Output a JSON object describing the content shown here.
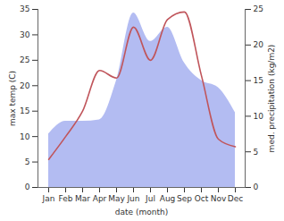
{
  "chart_data": {
    "type": "line",
    "x_label": "date (month)",
    "y_label": "max temp (C)",
    "y2_label": "med. precipitation (kg/m2)",
    "categories": [
      "Jan",
      "Feb",
      "Mar",
      "Apr",
      "May",
      "Jun",
      "Jul",
      "Aug",
      "Sep",
      "Oct",
      "Nov",
      "Dec"
    ],
    "series": [
      {
        "name": "med. precipitation",
        "type": "area",
        "axis": "y2",
        "color": "#b3bcf2",
        "values": [
          7.5,
          9.3,
          9.3,
          9.5,
          15,
          24.5,
          20.5,
          22.5,
          17.5,
          15,
          14,
          10.5
        ]
      },
      {
        "name": "max temp",
        "type": "line",
        "color": "#c0555b",
        "values": [
          5.5,
          10,
          15,
          23,
          21.5,
          31.5,
          25,
          33,
          34.5,
          22,
          9.5,
          8
        ]
      }
    ],
    "ylim": [
      0,
      35
    ],
    "yticks": [
      0,
      5,
      10,
      15,
      20,
      25,
      30,
      35
    ],
    "y2lim": [
      0,
      25
    ],
    "y2ticks": [
      0,
      5,
      10,
      15,
      20,
      25
    ],
    "grid": false
  }
}
